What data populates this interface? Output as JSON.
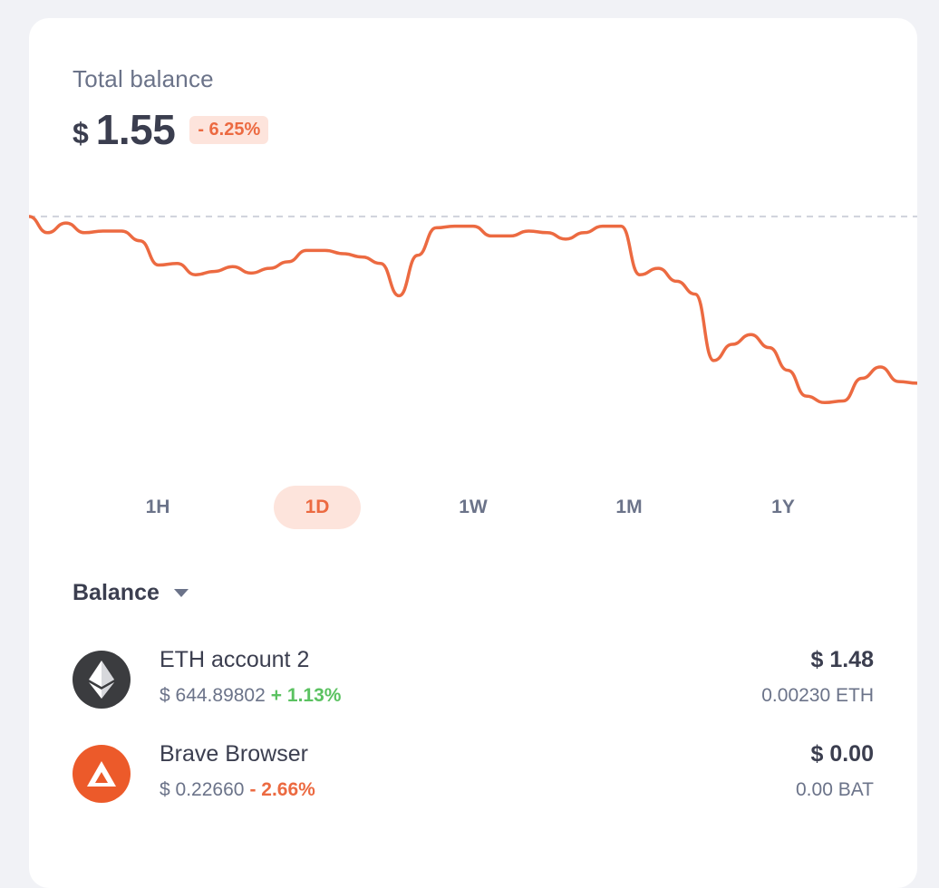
{
  "summary": {
    "label": "Total balance",
    "currency_symbol": "$",
    "amount": "1.55",
    "change": "- 6.25%"
  },
  "colors": {
    "accent": "#ec6a41",
    "badge_bg": "#fde4dc",
    "positive": "#5bc261",
    "text_dark": "#3b3e4f",
    "text_muted": "#6b7389"
  },
  "chart_data": {
    "type": "line",
    "baseline": "dashed reference line at starting value",
    "series": [
      {
        "values": [
          1.655,
          1.645,
          1.651,
          1.645,
          1.646,
          1.646,
          1.64,
          1.625,
          1.626,
          1.619,
          1.621,
          1.624,
          1.62,
          1.623,
          1.627,
          1.634,
          1.634,
          1.632,
          1.63,
          1.626,
          1.606,
          1.631,
          1.648,
          1.649,
          1.649,
          1.643,
          1.643,
          1.646,
          1.645,
          1.641,
          1.645,
          1.649,
          1.649,
          1.619,
          1.623,
          1.615,
          1.607,
          1.566,
          1.576,
          1.582,
          1.574,
          1.56,
          1.544,
          1.54,
          1.541,
          1.555,
          1.562,
          1.553,
          1.552
        ]
      }
    ]
  },
  "ranges": [
    {
      "label": "1H",
      "active": false
    },
    {
      "label": "1D",
      "active": true
    },
    {
      "label": "1W",
      "active": false
    },
    {
      "label": "1M",
      "active": false
    },
    {
      "label": "1Y",
      "active": false
    }
  ],
  "balance_selector": {
    "label": "Balance"
  },
  "accounts": [
    {
      "name": "ETH account 2",
      "icon": "ethereum-icon",
      "price": "$ 644.89802",
      "change": "+ 1.13%",
      "fiat": "$ 1.48",
      "crypto": "0.00230 ETH"
    },
    {
      "name": "Brave Browser",
      "icon": "bat-icon",
      "price": "$ 0.22660",
      "change": "- 2.66%",
      "fiat": "$ 0.00",
      "crypto": "0.00 BAT"
    }
  ]
}
